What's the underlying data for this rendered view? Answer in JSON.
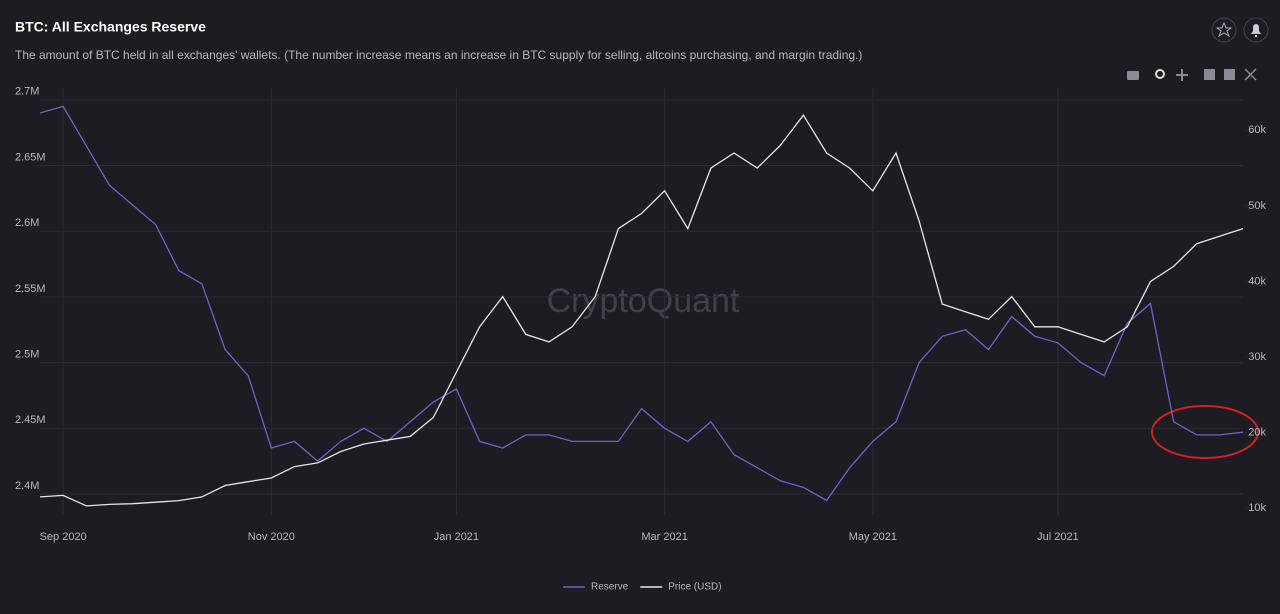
{
  "chart_data": {
    "type": "line",
    "title": "BTC: All Exchanges Reserve",
    "subtitle": "The amount of BTC held in all exchanges' wallets. (The number increase means an increase in BTC supply for selling, altcoins purchasing, and margin trading.)",
    "watermark": "CryptoQuant",
    "categories": [
      null,
      "Sep 2020",
      null,
      null,
      null,
      null,
      null,
      null,
      null,
      null,
      "Nov 2020",
      null,
      null,
      null,
      null,
      null,
      null,
      null,
      "Jan 2021",
      null,
      null,
      null,
      null,
      null,
      null,
      null,
      null,
      "Mar 2021",
      null,
      null,
      null,
      null,
      null,
      null,
      null,
      null,
      "May 2021",
      null,
      null,
      null,
      null,
      null,
      null,
      null,
      "Jul 2021",
      null,
      null,
      null,
      null,
      null,
      null,
      null,
      null
    ],
    "series": [
      {
        "name": "Reserve",
        "color": "#6f63c4",
        "values": [
          2690000,
          2695000,
          2665000,
          2635000,
          2620000,
          2605000,
          2570000,
          2560000,
          2510000,
          2490000,
          2435000,
          2440000,
          2425000,
          2440000,
          2450000,
          2440000,
          2455000,
          2470000,
          2480000,
          2440000,
          2435000,
          2445000,
          2445000,
          2440000,
          2440000,
          2440000,
          2465000,
          2450000,
          2440000,
          2455000,
          2430000,
          2420000,
          2410000,
          2405000,
          2395000,
          2420000,
          2440000,
          2455000,
          2500000,
          2520000,
          2525000,
          2510000,
          2535000,
          2520000,
          2515000,
          2500000,
          2490000,
          2530000,
          2545000,
          2455000,
          2445000,
          2445000,
          2447000
        ]
      },
      {
        "name": "Price (USD)",
        "color": "#e6e6e6",
        "axis": "y2",
        "values": [
          11500,
          11700,
          10300,
          10500,
          10600,
          10800,
          11000,
          11500,
          13000,
          13500,
          14000,
          15500,
          16000,
          17500,
          18500,
          19000,
          19500,
          22000,
          28000,
          34000,
          38000,
          33000,
          32000,
          34000,
          38000,
          47000,
          49000,
          52000,
          47000,
          55000,
          57000,
          55000,
          58000,
          62000,
          57000,
          55000,
          52000,
          57000,
          48000,
          37000,
          36000,
          35000,
          38000,
          34000,
          34000,
          33000,
          32000,
          34000,
          40000,
          42000,
          45000,
          46000,
          47000
        ]
      }
    ],
    "ylim": [
      2384000,
      2709000
    ],
    "yticks": [
      {
        "value": 2400000,
        "label": "2.4M"
      },
      {
        "value": 2450000,
        "label": "2.45M"
      },
      {
        "value": 2500000,
        "label": "2.5M"
      },
      {
        "value": 2550000,
        "label": "2.55M"
      },
      {
        "value": 2600000,
        "label": "2.6M"
      },
      {
        "value": 2650000,
        "label": "2.65M"
      },
      {
        "value": 2700000,
        "label": "2.7M"
      }
    ],
    "y2lim": [
      9100,
      65600
    ],
    "y2ticks": [
      {
        "value": 10000,
        "label": "10k"
      },
      {
        "value": 20000,
        "label": "20k"
      },
      {
        "value": 30000,
        "label": "30k"
      },
      {
        "value": 40000,
        "label": "40k"
      },
      {
        "value": 50000,
        "label": "50k"
      },
      {
        "value": 60000,
        "label": "60k"
      }
    ],
    "grid": true
  }
}
